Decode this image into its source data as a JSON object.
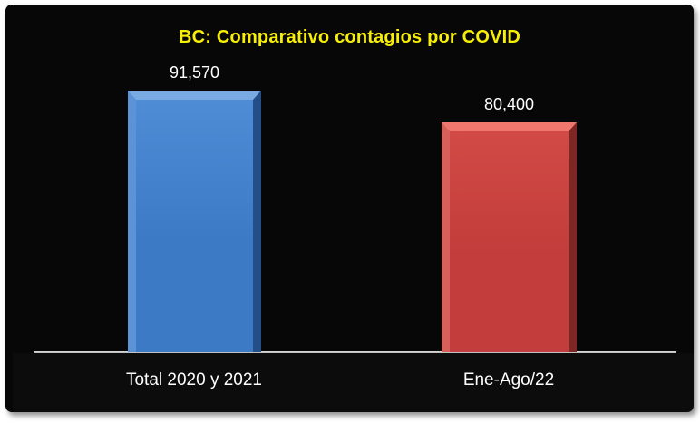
{
  "chart_data": {
    "type": "bar",
    "title": "BC: Comparativo contagios por COVID",
    "categories": [
      "Total 2020 y 2021",
      "Ene-Ago/22"
    ],
    "values": [
      91570,
      80400
    ],
    "value_labels": [
      "91,570",
      "80,400"
    ],
    "xlabel": "",
    "ylabel": "",
    "ylim": [
      0,
      91570
    ],
    "grid": false,
    "legend": false,
    "layout": {
      "bar_style": "3d-beveled",
      "value_labels_position": "above-bars",
      "axis_shown": "x-only"
    },
    "panel_background": "#070707",
    "frame_color": "#ffffff",
    "title_color": "#f7ef05",
    "label_color": "#ffffff",
    "axis_line_color": "#b8b8b8",
    "colors": [
      {
        "name": "blue",
        "fill": "#3d7ac6",
        "fill_light": "#4f8cd6",
        "bevel_top": "#7aaae4",
        "bevel_left": "#5b93d6",
        "bevel_right": "#234e87"
      },
      {
        "name": "red",
        "fill": "#c23d3b",
        "fill_light": "#d24a46",
        "bevel_top": "#ef776e",
        "bevel_left": "#d7605b",
        "bevel_right": "#7e2623"
      }
    ]
  }
}
